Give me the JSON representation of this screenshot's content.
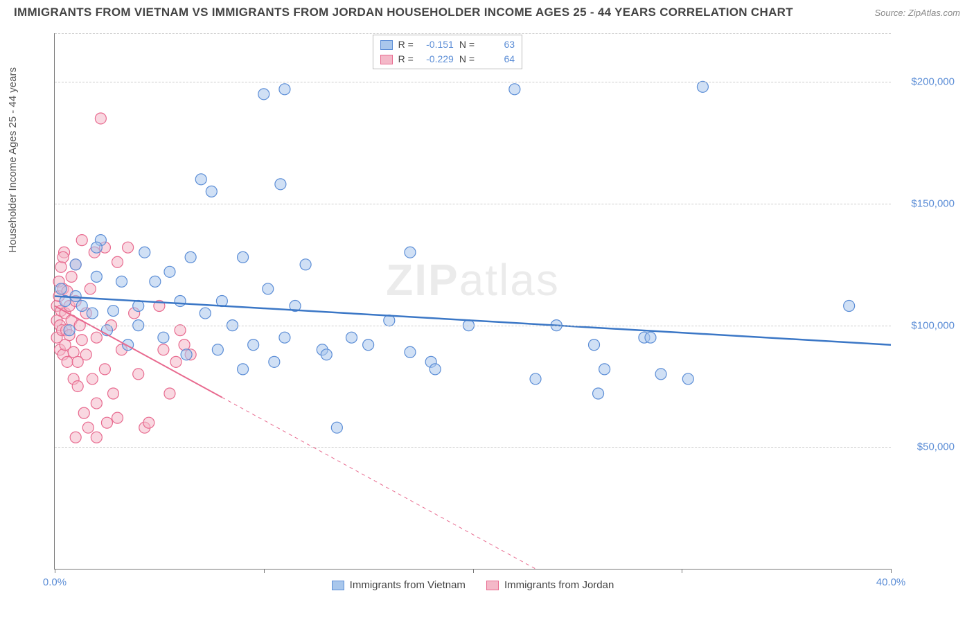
{
  "header": {
    "title": "IMMIGRANTS FROM VIETNAM VS IMMIGRANTS FROM JORDAN HOUSEHOLDER INCOME AGES 25 - 44 YEARS CORRELATION CHART",
    "source": "Source: ZipAtlas.com"
  },
  "watermark": {
    "bold": "ZIP",
    "thin": "atlas"
  },
  "chart": {
    "type": "scatter",
    "ylabel": "Householder Income Ages 25 - 44 years",
    "xlim": [
      0,
      40
    ],
    "ylim": [
      0,
      220000
    ],
    "x_ticks": [
      0,
      10,
      20,
      30,
      40
    ],
    "x_tick_labels": {
      "0": "0.0%",
      "40": "40.0%"
    },
    "y_gridlines": [
      50000,
      100000,
      150000,
      200000
    ],
    "y_tick_labels": {
      "50000": "$50,000",
      "100000": "$100,000",
      "150000": "$150,000",
      "200000": "$200,000"
    },
    "background_color": "#ffffff",
    "grid_color": "#cccccc",
    "axis_color": "#777777",
    "label_color": "#5b8dd6",
    "marker_radius": 8,
    "marker_opacity": 0.55,
    "series": [
      {
        "name": "Immigrants from Vietnam",
        "color_fill": "#a9c7ec",
        "color_stroke": "#5b8dd6",
        "trend_color": "#3b77c6",
        "trend_width": 2.5,
        "R": "-0.151",
        "N": "63",
        "trend": {
          "x1": 0,
          "y1": 112000,
          "x2": 40,
          "y2": 92000,
          "dash_from_x": null
        },
        "points": [
          [
            0.3,
            115000
          ],
          [
            0.5,
            110000
          ],
          [
            0.7,
            98000
          ],
          [
            1.0,
            112000
          ],
          [
            1.0,
            125000
          ],
          [
            1.3,
            108000
          ],
          [
            1.8,
            105000
          ],
          [
            2.0,
            120000
          ],
          [
            2.2,
            135000
          ],
          [
            2.5,
            98000
          ],
          [
            2.8,
            106000
          ],
          [
            3.2,
            118000
          ],
          [
            3.5,
            92000
          ],
          [
            4.0,
            108000
          ],
          [
            4.0,
            100000
          ],
          [
            4.3,
            130000
          ],
          [
            4.8,
            118000
          ],
          [
            5.2,
            95000
          ],
          [
            5.5,
            122000
          ],
          [
            6.0,
            110000
          ],
          [
            6.3,
            88000
          ],
          [
            7.0,
            160000
          ],
          [
            7.2,
            105000
          ],
          [
            7.5,
            155000
          ],
          [
            7.8,
            90000
          ],
          [
            8.0,
            110000
          ],
          [
            8.5,
            100000
          ],
          [
            9.0,
            82000
          ],
          [
            9.0,
            128000
          ],
          [
            9.5,
            92000
          ],
          [
            10.0,
            195000
          ],
          [
            10.2,
            115000
          ],
          [
            10.5,
            85000
          ],
          [
            10.8,
            158000
          ],
          [
            11.0,
            95000
          ],
          [
            11.0,
            197000
          ],
          [
            11.5,
            108000
          ],
          [
            12.0,
            125000
          ],
          [
            12.8,
            90000
          ],
          [
            13.0,
            88000
          ],
          [
            13.5,
            58000
          ],
          [
            14.2,
            95000
          ],
          [
            15.0,
            92000
          ],
          [
            16.0,
            102000
          ],
          [
            17.0,
            89000
          ],
          [
            17.0,
            130000
          ],
          [
            18.0,
            85000
          ],
          [
            18.2,
            82000
          ],
          [
            19.8,
            100000
          ],
          [
            22.0,
            197000
          ],
          [
            23.0,
            78000
          ],
          [
            24.0,
            100000
          ],
          [
            25.8,
            92000
          ],
          [
            26.0,
            72000
          ],
          [
            26.3,
            82000
          ],
          [
            28.2,
            95000
          ],
          [
            28.5,
            95000
          ],
          [
            29.0,
            80000
          ],
          [
            30.3,
            78000
          ],
          [
            31.0,
            198000
          ],
          [
            38.0,
            108000
          ],
          [
            2.0,
            132000
          ],
          [
            6.5,
            128000
          ]
        ]
      },
      {
        "name": "Immigrants from Jordan",
        "color_fill": "#f4b8c8",
        "color_stroke": "#e86a8f",
        "trend_color": "#e86a8f",
        "trend_width": 2,
        "R": "-0.229",
        "N": "64",
        "trend": {
          "x1": 0,
          "y1": 108000,
          "x2": 23,
          "y2": 0,
          "dash_from_x": 8
        },
        "points": [
          [
            0.1,
            108000
          ],
          [
            0.1,
            102000
          ],
          [
            0.1,
            95000
          ],
          [
            0.2,
            112000
          ],
          [
            0.2,
            118000
          ],
          [
            0.25,
            100000
          ],
          [
            0.25,
            90000
          ],
          [
            0.3,
            124000
          ],
          [
            0.3,
            106000
          ],
          [
            0.35,
            98000
          ],
          [
            0.4,
            115000
          ],
          [
            0.4,
            88000
          ],
          [
            0.45,
            130000
          ],
          [
            0.5,
            105000
          ],
          [
            0.5,
            92000
          ],
          [
            0.55,
            98000
          ],
          [
            0.6,
            85000
          ],
          [
            0.6,
            114000
          ],
          [
            0.7,
            108000
          ],
          [
            0.7,
            96000
          ],
          [
            0.8,
            120000
          ],
          [
            0.8,
            102000
          ],
          [
            0.9,
            89000
          ],
          [
            0.9,
            78000
          ],
          [
            1.0,
            125000
          ],
          [
            1.0,
            110000
          ],
          [
            1.1,
            85000
          ],
          [
            1.1,
            75000
          ],
          [
            1.2,
            100000
          ],
          [
            1.3,
            135000
          ],
          [
            1.3,
            94000
          ],
          [
            1.4,
            64000
          ],
          [
            1.5,
            88000
          ],
          [
            1.5,
            105000
          ],
          [
            1.6,
            58000
          ],
          [
            1.7,
            115000
          ],
          [
            1.8,
            78000
          ],
          [
            1.9,
            130000
          ],
          [
            2.0,
            95000
          ],
          [
            2.0,
            68000
          ],
          [
            2.2,
            185000
          ],
          [
            2.4,
            82000
          ],
          [
            2.4,
            132000
          ],
          [
            2.5,
            60000
          ],
          [
            2.7,
            100000
          ],
          [
            2.8,
            72000
          ],
          [
            3.0,
            126000
          ],
          [
            3.0,
            62000
          ],
          [
            3.2,
            90000
          ],
          [
            3.5,
            132000
          ],
          [
            3.8,
            105000
          ],
          [
            4.0,
            80000
          ],
          [
            4.3,
            58000
          ],
          [
            4.5,
            60000
          ],
          [
            5.0,
            108000
          ],
          [
            5.2,
            90000
          ],
          [
            5.5,
            72000
          ],
          [
            5.8,
            85000
          ],
          [
            6.0,
            98000
          ],
          [
            6.2,
            92000
          ],
          [
            6.5,
            88000
          ],
          [
            1.0,
            54000
          ],
          [
            2.0,
            54000
          ],
          [
            0.4,
            128000
          ]
        ]
      }
    ]
  },
  "legend_labels": {
    "R": "R =",
    "N": "N ="
  }
}
